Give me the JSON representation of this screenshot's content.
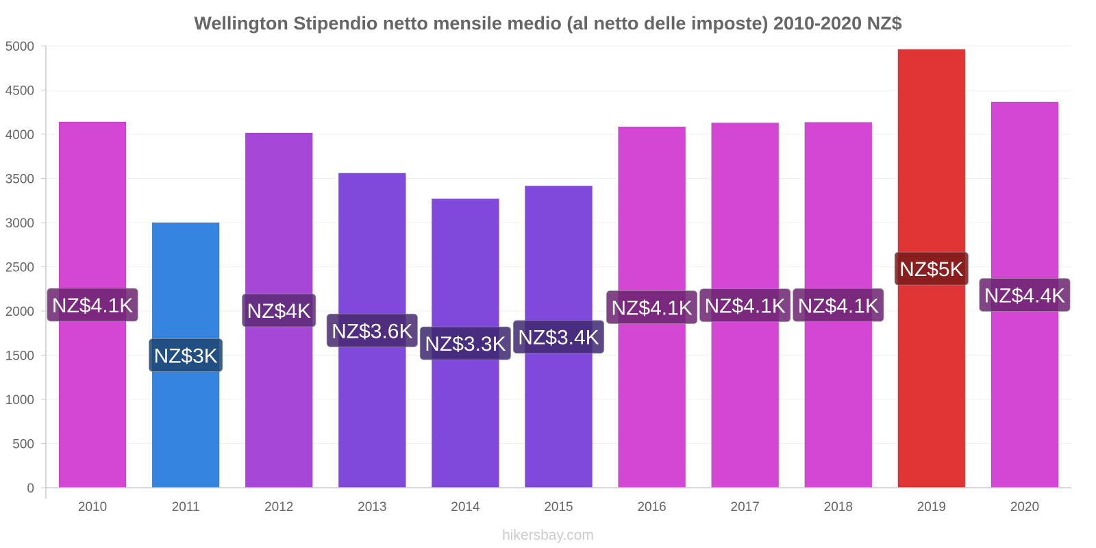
{
  "chart_data": {
    "type": "bar",
    "title": "Wellington Stipendio netto mensile medio (al netto delle imposte) 2010-2020 NZ$",
    "xlabel": "",
    "ylabel": "",
    "categories": [
      "2010",
      "2011",
      "2012",
      "2013",
      "2014",
      "2015",
      "2016",
      "2017",
      "2018",
      "2019",
      "2020"
    ],
    "values": [
      4140,
      3000,
      4015,
      3560,
      3270,
      3415,
      4085,
      4130,
      4135,
      4960,
      4365
    ],
    "data_labels": [
      "NZ$4.1K",
      "NZ$3K",
      "NZ$4K",
      "NZ$3.6K",
      "NZ$3.3K",
      "NZ$3.4K",
      "NZ$4.1K",
      "NZ$4.1K",
      "NZ$4.1K",
      "NZ$5K",
      "NZ$4.4K"
    ],
    "bar_colors": [
      "#d447d4",
      "#3584e0",
      "#a747d8",
      "#8149db",
      "#8149db",
      "#8149db",
      "#d447d4",
      "#d447d4",
      "#d447d4",
      "#e03535",
      "#d447d4"
    ],
    "label_bg_colors": [
      "#6b2370",
      "#1e4572",
      "#5c2c75",
      "#47296f",
      "#3d2770",
      "#3f286f",
      "#6b2370",
      "#6b2370",
      "#6b2370",
      "#7a1a1a",
      "#6b2370"
    ],
    "y_ticks": [
      0,
      500,
      1000,
      1500,
      2000,
      2500,
      3000,
      3500,
      4000,
      4500,
      5000
    ],
    "ylim": [
      0,
      5000
    ],
    "grid": true,
    "watermark": "hikersbay.com"
  }
}
